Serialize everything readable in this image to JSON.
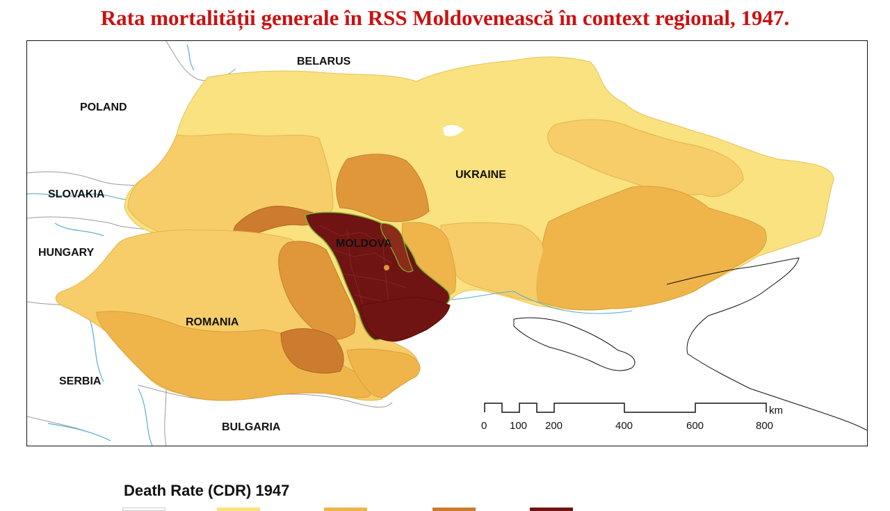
{
  "title": "Rata mortalității generale în RSS Moldovenească în context regional, 1947.",
  "map": {
    "labels": {
      "belarus": "BELARUS",
      "poland": "POLAND",
      "slovakia": "SLOVAKIA",
      "hungary": "HUNGARY",
      "ukraine": "UKRAINE",
      "moldova": "MOLDOVA",
      "romania": "ROMANIA",
      "serbia": "SERBIA",
      "bulgaria": "BULGARIA"
    },
    "colors": {
      "lightest": "#f9e27f",
      "light": "#f6cd68",
      "medium": "#efb54b",
      "dark": "#cd7b2e",
      "darkest": "#701313",
      "border_green": "#7ab92c",
      "water": "#5aaed0"
    },
    "scale": {
      "ticks": [
        "0",
        "100",
        "200",
        "400",
        "600",
        "800"
      ],
      "unit": "km"
    }
  },
  "legend": {
    "title": "Death Rate (CDR) 1947",
    "swatch_colors": [
      "#ffffff",
      "#f9e27f",
      "#efb54b",
      "#cd7b2e",
      "#701313"
    ]
  }
}
